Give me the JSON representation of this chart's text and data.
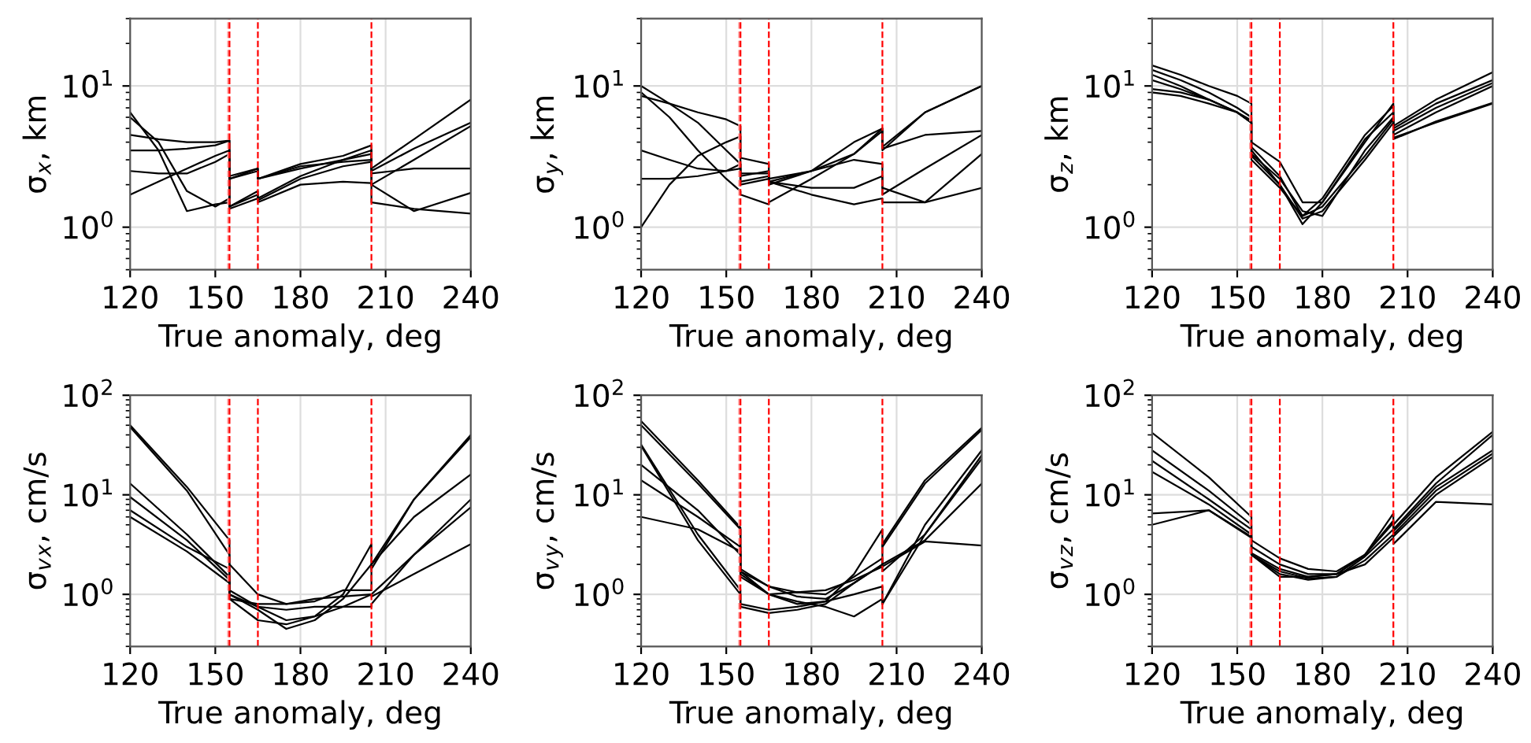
{
  "chart_data": [
    {
      "type": "line",
      "xlabel": "True anomaly, deg",
      "ylabel": "σ$_{x}$, km",
      "log": "y",
      "grid": true,
      "xlim": [
        120,
        240
      ],
      "xticks": [
        120,
        150,
        180,
        210,
        240
      ],
      "ylim": [
        0.5,
        30
      ],
      "yticks": [
        {
          "value": 1,
          "label": "10$^{0}$"
        },
        {
          "value": 10,
          "label": "10$^{1}$"
        }
      ],
      "line_style": "solid",
      "ref_lines": [
        {
          "axis": "x",
          "value": 154.5,
          "color": "#ff9999",
          "line_style": "dashed"
        },
        {
          "axis": "x",
          "value": 155,
          "color": "#ff0000",
          "line_style": "dashed"
        },
        {
          "axis": "x",
          "value": 165,
          "color": "#ff0000",
          "line_style": "dashed"
        },
        {
          "axis": "x",
          "value": 205,
          "color": "#ff0000",
          "line_style": "dashed"
        }
      ],
      "series": [
        {
          "color": "#000000",
          "x": [
            120,
            130,
            140,
            150,
            155,
            155,
            165,
            165,
            180,
            195,
            205,
            205,
            220,
            240
          ],
          "values": [
            6.5,
            3.5,
            1.3,
            1.45,
            1.5,
            1.4,
            1.8,
            1.6,
            2.3,
            3.0,
            3.5,
            2.6,
            4.2,
            8.0
          ]
        },
        {
          "color": "#000000",
          "x": [
            120,
            130,
            140,
            150,
            155,
            155,
            165,
            165,
            180,
            195,
            205,
            205,
            220,
            240
          ],
          "values": [
            6.0,
            4.0,
            1.8,
            1.4,
            1.6,
            2.3,
            2.6,
            2.2,
            2.6,
            3.0,
            3.3,
            2.5,
            3.6,
            5.5
          ]
        },
        {
          "color": "#000000",
          "x": [
            120,
            130,
            140,
            150,
            155,
            155,
            165,
            165,
            180,
            195,
            205,
            205,
            220,
            240
          ],
          "values": [
            4.5,
            4.2,
            4.0,
            4.0,
            4.1,
            2.2,
            2.6,
            2.2,
            2.8,
            3.2,
            3.8,
            2.4,
            2.6,
            2.6
          ]
        },
        {
          "color": "#000000",
          "x": [
            120,
            130,
            140,
            150,
            155,
            155,
            165,
            165,
            180,
            195,
            205,
            205,
            220,
            240
          ],
          "values": [
            3.5,
            3.5,
            3.6,
            3.8,
            4.1,
            1.4,
            1.7,
            1.55,
            2.2,
            2.7,
            2.9,
            2.0,
            1.3,
            1.75
          ]
        },
        {
          "color": "#000000",
          "x": [
            120,
            130,
            140,
            150,
            155,
            155,
            165,
            165,
            180,
            195,
            205,
            205,
            220,
            240
          ],
          "values": [
            2.5,
            2.4,
            2.4,
            2.9,
            3.3,
            2.2,
            2.5,
            2.2,
            2.7,
            2.9,
            3.0,
            2.0,
            3.0,
            5.2
          ]
        },
        {
          "color": "#000000",
          "x": [
            120,
            130,
            140,
            150,
            155,
            155,
            165,
            165,
            180,
            195,
            205,
            205,
            220,
            240
          ],
          "values": [
            1.7,
            2.1,
            2.6,
            3.2,
            3.5,
            1.35,
            1.6,
            1.5,
            2.0,
            2.1,
            2.05,
            1.5,
            1.35,
            1.25
          ]
        }
      ]
    },
    {
      "type": "line",
      "xlabel": "True anomaly, deg",
      "ylabel": "σ$_{y}$, km",
      "log": "y",
      "grid": true,
      "xlim": [
        120,
        240
      ],
      "xticks": [
        120,
        150,
        180,
        210,
        240
      ],
      "ylim": [
        0.5,
        30
      ],
      "yticks": [
        {
          "value": 1,
          "label": "10$^{0}$"
        },
        {
          "value": 10,
          "label": "10$^{1}$"
        }
      ],
      "line_style": "solid",
      "ref_lines": [
        {
          "axis": "x",
          "value": 154.5,
          "color": "#ff9999",
          "line_style": "dashed"
        },
        {
          "axis": "x",
          "value": 155,
          "color": "#ff0000",
          "line_style": "dashed"
        },
        {
          "axis": "x",
          "value": 165,
          "color": "#ff0000",
          "line_style": "dashed"
        },
        {
          "axis": "x",
          "value": 205,
          "color": "#ff0000",
          "line_style": "dashed"
        }
      ],
      "series": [
        {
          "color": "#000000",
          "x": [
            120,
            130,
            140,
            150,
            155,
            155,
            165,
            165,
            180,
            195,
            205,
            205,
            220,
            240
          ],
          "values": [
            10,
            7.5,
            5.5,
            3.5,
            2.8,
            2.1,
            2.3,
            2.1,
            2.5,
            3.3,
            5.0,
            3.7,
            6.5,
            10
          ]
        },
        {
          "color": "#000000",
          "x": [
            120,
            130,
            140,
            150,
            155,
            155,
            165,
            165,
            180,
            195,
            205,
            205,
            220,
            240
          ],
          "values": [
            8.5,
            7.5,
            6.5,
            5.8,
            5.2,
            3.1,
            2.8,
            2.0,
            2.5,
            4.0,
            5.0,
            3.5,
            6.5,
            10
          ]
        },
        {
          "color": "#000000",
          "x": [
            120,
            130,
            140,
            150,
            155,
            155,
            165,
            165,
            180,
            195,
            205,
            205,
            220,
            240
          ],
          "values": [
            9,
            6,
            3.5,
            2.2,
            1.8,
            1.7,
            1.45,
            1.5,
            2.2,
            3.3,
            4.8,
            3.6,
            4.5,
            4.8
          ]
        },
        {
          "color": "#000000",
          "x": [
            120,
            130,
            140,
            150,
            155,
            155,
            165,
            165,
            180,
            195,
            205,
            205,
            220,
            240
          ],
          "values": [
            3.5,
            3.0,
            2.6,
            2.5,
            2.6,
            2.4,
            2.4,
            2.2,
            2.5,
            3.0,
            2.8,
            1.7,
            2.6,
            4.5
          ]
        },
        {
          "color": "#000000",
          "x": [
            120,
            130,
            140,
            150,
            155,
            155,
            165,
            165,
            180,
            195,
            205,
            205,
            220,
            240
          ],
          "values": [
            2.2,
            2.2,
            2.3,
            2.5,
            2.8,
            2.3,
            2.5,
            2.1,
            1.9,
            1.9,
            2.3,
            1.9,
            1.5,
            1.9
          ]
        },
        {
          "color": "#000000",
          "x": [
            120,
            130,
            140,
            150,
            155,
            155,
            165,
            165,
            180,
            195,
            205,
            205,
            220,
            240
          ],
          "values": [
            1.0,
            2.0,
            3.2,
            4.0,
            4.4,
            2.0,
            2.2,
            2.1,
            1.7,
            1.45,
            1.6,
            1.5,
            1.5,
            3.3
          ]
        }
      ]
    },
    {
      "type": "line",
      "xlabel": "True anomaly, deg",
      "ylabel": "σ$_{z}$, km",
      "log": "y",
      "grid": true,
      "xlim": [
        120,
        240
      ],
      "xticks": [
        120,
        150,
        180,
        210,
        240
      ],
      "ylim": [
        0.5,
        30
      ],
      "yticks": [
        {
          "value": 1,
          "label": "10$^{0}$"
        },
        {
          "value": 10,
          "label": "10$^{1}$"
        }
      ],
      "line_style": "solid",
      "ref_lines": [
        {
          "axis": "x",
          "value": 154.5,
          "color": "#ff9999",
          "line_style": "dashed"
        },
        {
          "axis": "x",
          "value": 155,
          "color": "#ff0000",
          "line_style": "dashed"
        },
        {
          "axis": "x",
          "value": 165,
          "color": "#ff0000",
          "line_style": "dashed"
        },
        {
          "axis": "x",
          "value": 205,
          "color": "#ff0000",
          "line_style": "dashed"
        }
      ],
      "series": [
        {
          "color": "#000000",
          "x": [
            120,
            130,
            140,
            150,
            155,
            155,
            165,
            165,
            173,
            180,
            195,
            205,
            205,
            220,
            240
          ],
          "values": [
            14,
            12,
            10,
            8.5,
            7.5,
            4.0,
            2.9,
            2.9,
            1.5,
            1.5,
            4,
            7.5,
            5.2,
            8,
            12.5
          ]
        },
        {
          "color": "#000000",
          "x": [
            120,
            130,
            140,
            150,
            155,
            155,
            165,
            165,
            173,
            180,
            195,
            205,
            205,
            220,
            240
          ],
          "values": [
            13,
            11,
            9,
            7,
            6,
            3.7,
            2.3,
            2.3,
            1.2,
            1.6,
            4.5,
            7.2,
            5.0,
            7.5,
            11
          ]
        },
        {
          "color": "#000000",
          "x": [
            120,
            130,
            140,
            150,
            155,
            155,
            165,
            165,
            173,
            180,
            195,
            205,
            205,
            220,
            240
          ],
          "values": [
            12,
            10,
            8,
            6.5,
            5.5,
            3.5,
            2.0,
            2.0,
            1.05,
            1.5,
            4.2,
            6.5,
            4.8,
            7,
            10.5
          ]
        },
        {
          "color": "#000000",
          "x": [
            120,
            130,
            140,
            150,
            155,
            155,
            165,
            165,
            173,
            180,
            195,
            205,
            205,
            220,
            240
          ],
          "values": [
            11,
            9.5,
            8,
            6.5,
            5.7,
            3.3,
            2.2,
            2.2,
            1.3,
            1.2,
            3.5,
            6.0,
            4.5,
            6.5,
            10
          ]
        },
        {
          "color": "#000000",
          "x": [
            120,
            130,
            140,
            150,
            155,
            155,
            165,
            165,
            173,
            180,
            195,
            205,
            205,
            220,
            240
          ],
          "values": [
            9.5,
            9,
            8,
            6.5,
            5.5,
            3.2,
            2.0,
            2.0,
            1.15,
            1.3,
            3.0,
            5.5,
            4.3,
            5.5,
            7.5
          ]
        },
        {
          "color": "#000000",
          "x": [
            120,
            130,
            140,
            150,
            155,
            155,
            165,
            165,
            173,
            180,
            195,
            205,
            205,
            220,
            240
          ],
          "values": [
            9,
            8.5,
            7.5,
            6.5,
            5.5,
            3.0,
            1.9,
            1.9,
            1.2,
            1.4,
            3.2,
            5.8,
            4.2,
            5.6,
            7.6
          ]
        }
      ]
    },
    {
      "type": "line",
      "xlabel": "True anomaly, deg",
      "ylabel": "σ$_{v}$$_{x}$, cm/s",
      "log": "y",
      "grid": true,
      "xlim": [
        120,
        240
      ],
      "xticks": [
        120,
        150,
        180,
        210,
        240
      ],
      "ylim": [
        0.3,
        100
      ],
      "yticks": [
        {
          "value": 1,
          "label": "10$^{0}$"
        },
        {
          "value": 10,
          "label": "10$^{1}$"
        },
        {
          "value": 100,
          "label": "10$^{2}$"
        }
      ],
      "line_style": "solid",
      "ref_lines": [
        {
          "axis": "x",
          "value": 154.5,
          "color": "#ff9999",
          "line_style": "dashed"
        },
        {
          "axis": "x",
          "value": 155,
          "color": "#ff0000",
          "line_style": "dashed"
        },
        {
          "axis": "x",
          "value": 165,
          "color": "#ff0000",
          "line_style": "dashed"
        },
        {
          "axis": "x",
          "value": 205,
          "color": "#ff0000",
          "line_style": "dashed"
        }
      ],
      "series": [
        {
          "color": "#000000",
          "x": [
            120,
            140,
            155,
            155,
            165,
            175,
            185,
            195,
            205,
            205,
            220,
            240
          ],
          "values": [
            50,
            12,
            3.5,
            2.0,
            1.0,
            0.8,
            0.85,
            1.1,
            1.1,
            2.0,
            9,
            40
          ]
        },
        {
          "color": "#000000",
          "x": [
            120,
            140,
            155,
            155,
            165,
            175,
            185,
            195,
            205,
            205,
            220,
            240
          ],
          "values": [
            48,
            11,
            2.5,
            1.1,
            0.75,
            0.55,
            0.6,
            1.0,
            3.2,
            1.8,
            9,
            38
          ]
        },
        {
          "color": "#000000",
          "x": [
            120,
            140,
            155,
            155,
            165,
            175,
            185,
            195,
            205,
            205,
            220,
            240
          ],
          "values": [
            13,
            4,
            1.5,
            1.0,
            0.7,
            0.45,
            0.55,
            0.9,
            2.0,
            2.0,
            6,
            16
          ]
        },
        {
          "color": "#000000",
          "x": [
            120,
            140,
            155,
            155,
            165,
            175,
            185,
            195,
            205,
            205,
            220,
            240
          ],
          "values": [
            9.5,
            3.5,
            1.4,
            0.9,
            0.55,
            0.5,
            0.6,
            0.75,
            1.0,
            1.0,
            2.5,
            9
          ]
        },
        {
          "color": "#000000",
          "x": [
            120,
            140,
            155,
            155,
            165,
            175,
            185,
            195,
            205,
            205,
            220,
            240
          ],
          "values": [
            7,
            3,
            1.8,
            1.0,
            0.75,
            0.7,
            0.75,
            0.75,
            0.75,
            0.8,
            2.5,
            7.5
          ]
        },
        {
          "color": "#000000",
          "x": [
            120,
            140,
            155,
            155,
            165,
            175,
            185,
            195,
            205,
            205,
            220,
            240
          ],
          "values": [
            6,
            2.7,
            1.3,
            0.9,
            0.8,
            0.8,
            0.9,
            0.95,
            1.0,
            0.95,
            1.6,
            3.2
          ]
        }
      ]
    },
    {
      "type": "line",
      "xlabel": "True anomaly, deg",
      "ylabel": "σ$_{v}$$_{y}$, cm/s",
      "log": "y",
      "grid": true,
      "xlim": [
        120,
        240
      ],
      "xticks": [
        120,
        150,
        180,
        210,
        240
      ],
      "ylim": [
        0.3,
        100
      ],
      "yticks": [
        {
          "value": 1,
          "label": "10$^{0}$"
        },
        {
          "value": 10,
          "label": "10$^{1}$"
        },
        {
          "value": 100,
          "label": "10$^{2}$"
        }
      ],
      "line_style": "solid",
      "ref_lines": [
        {
          "axis": "x",
          "value": 154.5,
          "color": "#ff9999",
          "line_style": "dashed"
        },
        {
          "axis": "x",
          "value": 155,
          "color": "#ff0000",
          "line_style": "dashed"
        },
        {
          "axis": "x",
          "value": 165,
          "color": "#ff0000",
          "line_style": "dashed"
        },
        {
          "axis": "x",
          "value": 205,
          "color": "#ff0000",
          "line_style": "dashed"
        }
      ],
      "series": [
        {
          "color": "#000000",
          "x": [
            120,
            140,
            155,
            155,
            165,
            175,
            185,
            195,
            205,
            205,
            220,
            240
          ],
          "values": [
            55,
            14,
            4.7,
            1.8,
            1.2,
            0.95,
            0.9,
            1.3,
            2.0,
            3.2,
            14,
            47
          ]
        },
        {
          "color": "#000000",
          "x": [
            120,
            140,
            155,
            155,
            165,
            175,
            185,
            195,
            205,
            205,
            220,
            240
          ],
          "values": [
            50,
            13,
            4.5,
            1.5,
            1.0,
            0.8,
            0.85,
            1.6,
            4.5,
            3.0,
            13,
            45
          ]
        },
        {
          "color": "#000000",
          "x": [
            120,
            140,
            155,
            155,
            165,
            175,
            185,
            195,
            205,
            205,
            220,
            240
          ],
          "values": [
            32,
            4,
            1.1,
            0.8,
            0.7,
            0.75,
            0.85,
            1.0,
            1.2,
            0.8,
            5,
            28
          ]
        },
        {
          "color": "#000000",
          "x": [
            120,
            140,
            155,
            155,
            165,
            175,
            185,
            195,
            205,
            205,
            220,
            240
          ],
          "values": [
            31,
            3.5,
            1.0,
            0.75,
            0.65,
            0.7,
            0.8,
            1.3,
            2.0,
            1.7,
            4,
            23
          ]
        },
        {
          "color": "#000000",
          "x": [
            120,
            140,
            155,
            155,
            165,
            175,
            185,
            195,
            205,
            205,
            220,
            240
          ],
          "values": [
            20,
            7,
            2.5,
            1.6,
            1.0,
            0.85,
            0.75,
            0.6,
            0.9,
            0.8,
            4,
            25
          ]
        },
        {
          "color": "#000000",
          "x": [
            120,
            140,
            155,
            155,
            165,
            175,
            185,
            195,
            205,
            205,
            220,
            240
          ],
          "values": [
            14,
            6,
            3,
            1.7,
            1.0,
            1.05,
            1.0,
            1.5,
            2.3,
            2.0,
            3.5,
            13
          ]
        },
        {
          "color": "#000000",
          "x": [
            120,
            140,
            155,
            155,
            165,
            175,
            185,
            195,
            205,
            205,
            220,
            240
          ],
          "values": [
            6,
            4.5,
            2.7,
            1.7,
            1.2,
            1.05,
            1.1,
            1.4,
            1.9,
            1.9,
            3.4,
            3.1
          ]
        }
      ]
    },
    {
      "type": "line",
      "xlabel": "True anomaly, deg",
      "ylabel": "σ$_{v}$$_{z}$, cm/s",
      "log": "y",
      "grid": true,
      "xlim": [
        120,
        240
      ],
      "xticks": [
        120,
        150,
        180,
        210,
        240
      ],
      "ylim": [
        0.3,
        100
      ],
      "yticks": [
        {
          "value": 1,
          "label": "10$^{0}$"
        },
        {
          "value": 10,
          "label": "10$^{1}$"
        },
        {
          "value": 100,
          "label": "10$^{2}$"
        }
      ],
      "line_style": "solid",
      "ref_lines": [
        {
          "axis": "x",
          "value": 154.5,
          "color": "#ff9999",
          "line_style": "dashed"
        },
        {
          "axis": "x",
          "value": 155,
          "color": "#ff0000",
          "line_style": "dashed"
        },
        {
          "axis": "x",
          "value": 165,
          "color": "#ff0000",
          "line_style": "dashed"
        },
        {
          "axis": "x",
          "value": 205,
          "color": "#ff0000",
          "line_style": "dashed"
        }
      ],
      "series": [
        {
          "color": "#000000",
          "x": [
            120,
            140,
            155,
            155,
            165,
            175,
            185,
            195,
            205,
            205,
            220,
            240
          ],
          "values": [
            42,
            15,
            6,
            3.5,
            2.3,
            1.8,
            1.7,
            2.5,
            6.5,
            5.0,
            15,
            43
          ]
        },
        {
          "color": "#000000",
          "x": [
            120,
            140,
            155,
            155,
            165,
            175,
            185,
            195,
            205,
            205,
            220,
            240
          ],
          "values": [
            28,
            11,
            5,
            3.0,
            2.0,
            1.6,
            1.6,
            2.5,
            5.5,
            4.5,
            13,
            40
          ]
        },
        {
          "color": "#000000",
          "x": [
            120,
            140,
            155,
            155,
            165,
            175,
            185,
            195,
            205,
            205,
            220,
            240
          ],
          "values": [
            22,
            9,
            4.5,
            2.6,
            1.8,
            1.5,
            1.6,
            2.5,
            5.2,
            4.3,
            12,
            28
          ]
        },
        {
          "color": "#000000",
          "x": [
            120,
            140,
            155,
            155,
            165,
            175,
            185,
            195,
            205,
            205,
            220,
            240
          ],
          "values": [
            17,
            8,
            4,
            2.5,
            1.7,
            1.45,
            1.5,
            2.4,
            4.5,
            4.0,
            11,
            26
          ]
        },
        {
          "color": "#000000",
          "x": [
            120,
            140,
            155,
            155,
            165,
            175,
            185,
            195,
            205,
            205,
            220,
            240
          ],
          "values": [
            6.5,
            7,
            3.7,
            2.5,
            1.6,
            1.4,
            1.5,
            2.2,
            4.0,
            3.8,
            10,
            24
          ]
        },
        {
          "color": "#000000",
          "x": [
            120,
            140,
            155,
            155,
            165,
            175,
            185,
            195,
            205,
            205,
            220,
            240
          ],
          "values": [
            5,
            7,
            3.8,
            2.5,
            1.5,
            1.5,
            1.6,
            2.0,
            3.7,
            3.2,
            8.5,
            8
          ]
        }
      ]
    }
  ]
}
